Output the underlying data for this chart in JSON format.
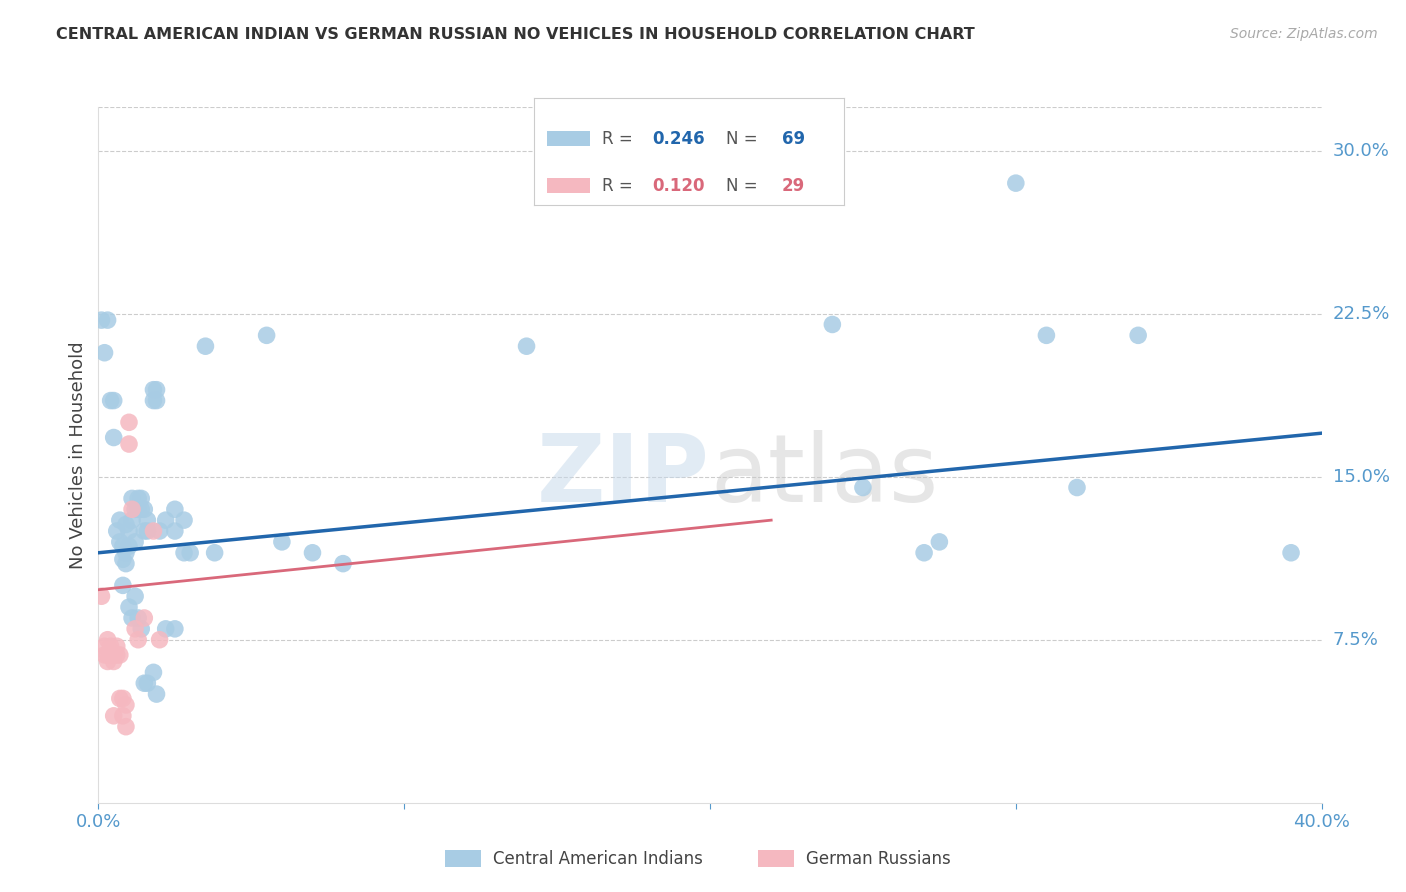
{
  "title": "CENTRAL AMERICAN INDIAN VS GERMAN RUSSIAN NO VEHICLES IN HOUSEHOLD CORRELATION CHART",
  "source": "Source: ZipAtlas.com",
  "ylabel": "No Vehicles in Household",
  "x_min": 0.0,
  "x_max": 0.4,
  "y_min": 0.0,
  "y_max": 0.32,
  "y_ticks_right": [
    0.075,
    0.15,
    0.225,
    0.3
  ],
  "y_tick_labels_right": [
    "7.5%",
    "15.0%",
    "22.5%",
    "30.0%"
  ],
  "legend_r1": "0.246",
  "legend_n1": "69",
  "legend_r2": "0.120",
  "legend_n2": "29",
  "blue_color": "#a8cce4",
  "pink_color": "#f5b8c0",
  "blue_line_color": "#2166ac",
  "pink_line_color": "#d9687a",
  "blue_scatter": [
    [
      0.001,
      0.222
    ],
    [
      0.002,
      0.207
    ],
    [
      0.003,
      0.222
    ],
    [
      0.004,
      0.185
    ],
    [
      0.005,
      0.168
    ],
    [
      0.005,
      0.185
    ],
    [
      0.006,
      0.125
    ],
    [
      0.007,
      0.13
    ],
    [
      0.007,
      0.12
    ],
    [
      0.008,
      0.118
    ],
    [
      0.008,
      0.112
    ],
    [
      0.008,
      0.1
    ],
    [
      0.009,
      0.128
    ],
    [
      0.009,
      0.11
    ],
    [
      0.009,
      0.115
    ],
    [
      0.01,
      0.125
    ],
    [
      0.01,
      0.118
    ],
    [
      0.01,
      0.09
    ],
    [
      0.011,
      0.14
    ],
    [
      0.011,
      0.13
    ],
    [
      0.011,
      0.085
    ],
    [
      0.012,
      0.135
    ],
    [
      0.012,
      0.12
    ],
    [
      0.012,
      0.095
    ],
    [
      0.013,
      0.135
    ],
    [
      0.013,
      0.14
    ],
    [
      0.013,
      0.085
    ],
    [
      0.014,
      0.14
    ],
    [
      0.014,
      0.135
    ],
    [
      0.014,
      0.08
    ],
    [
      0.015,
      0.125
    ],
    [
      0.015,
      0.135
    ],
    [
      0.015,
      0.055
    ],
    [
      0.016,
      0.13
    ],
    [
      0.016,
      0.125
    ],
    [
      0.016,
      0.055
    ],
    [
      0.018,
      0.19
    ],
    [
      0.018,
      0.185
    ],
    [
      0.018,
      0.06
    ],
    [
      0.019,
      0.19
    ],
    [
      0.019,
      0.185
    ],
    [
      0.019,
      0.05
    ],
    [
      0.02,
      0.125
    ],
    [
      0.022,
      0.13
    ],
    [
      0.022,
      0.08
    ],
    [
      0.025,
      0.125
    ],
    [
      0.025,
      0.135
    ],
    [
      0.025,
      0.08
    ],
    [
      0.028,
      0.13
    ],
    [
      0.028,
      0.115
    ],
    [
      0.03,
      0.115
    ],
    [
      0.035,
      0.21
    ],
    [
      0.038,
      0.115
    ],
    [
      0.055,
      0.215
    ],
    [
      0.06,
      0.12
    ],
    [
      0.07,
      0.115
    ],
    [
      0.08,
      0.11
    ],
    [
      0.14,
      0.21
    ],
    [
      0.24,
      0.22
    ],
    [
      0.25,
      0.145
    ],
    [
      0.27,
      0.115
    ],
    [
      0.275,
      0.12
    ],
    [
      0.3,
      0.285
    ],
    [
      0.31,
      0.215
    ],
    [
      0.32,
      0.145
    ],
    [
      0.34,
      0.215
    ],
    [
      0.39,
      0.115
    ]
  ],
  "pink_scatter": [
    [
      0.001,
      0.095
    ],
    [
      0.002,
      0.072
    ],
    [
      0.002,
      0.068
    ],
    [
      0.003,
      0.075
    ],
    [
      0.003,
      0.068
    ],
    [
      0.003,
      0.065
    ],
    [
      0.004,
      0.07
    ],
    [
      0.004,
      0.068
    ],
    [
      0.004,
      0.072
    ],
    [
      0.005,
      0.068
    ],
    [
      0.005,
      0.065
    ],
    [
      0.005,
      0.04
    ],
    [
      0.006,
      0.072
    ],
    [
      0.006,
      0.068
    ],
    [
      0.007,
      0.068
    ],
    [
      0.007,
      0.048
    ],
    [
      0.008,
      0.048
    ],
    [
      0.008,
      0.04
    ],
    [
      0.009,
      0.045
    ],
    [
      0.009,
      0.035
    ],
    [
      0.01,
      0.175
    ],
    [
      0.01,
      0.165
    ],
    [
      0.011,
      0.135
    ],
    [
      0.012,
      0.08
    ],
    [
      0.013,
      0.075
    ],
    [
      0.015,
      0.085
    ],
    [
      0.018,
      0.125
    ],
    [
      0.02,
      0.075
    ]
  ],
  "blue_trend_x": [
    0.0,
    0.4
  ],
  "blue_trend_y": [
    0.115,
    0.17
  ],
  "pink_trend_x": [
    0.0,
    0.22
  ],
  "pink_trend_y": [
    0.098,
    0.13
  ],
  "watermark": "ZIPatlas",
  "background_color": "#ffffff",
  "grid_color": "#cccccc",
  "tick_color": "#5599cc"
}
